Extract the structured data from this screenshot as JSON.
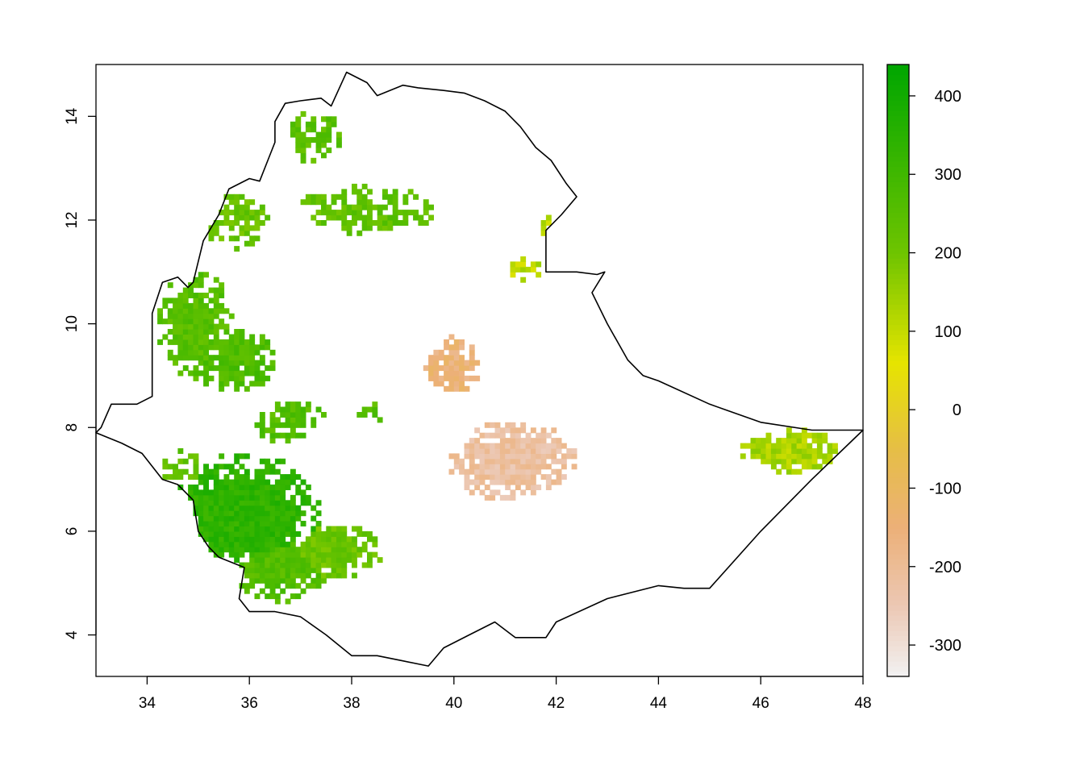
{
  "chart_data": {
    "type": "heatmap",
    "title": "",
    "xlabel": "",
    "ylabel": "",
    "xlim": [
      33,
      48
    ],
    "ylim": [
      3.2,
      15.0
    ],
    "x_ticks": [
      34,
      36,
      38,
      40,
      42,
      44,
      46,
      48
    ],
    "y_ticks": [
      4,
      6,
      8,
      10,
      12,
      14
    ],
    "grid": false,
    "legend": {
      "type": "colorbar",
      "placement": "right",
      "range": [
        -340,
        440
      ],
      "ticks": [
        -300,
        -200,
        -100,
        0,
        100,
        200,
        300,
        400
      ]
    },
    "colors": {
      "low": "#f2f2f2",
      "zero": "#e6c94a",
      "high": "#00a600"
    },
    "boundary": [
      [
        33.0,
        7.9
      ],
      [
        33.1,
        8.0
      ],
      [
        33.3,
        8.45
      ],
      [
        33.8,
        8.45
      ],
      [
        34.1,
        8.6
      ],
      [
        34.1,
        10.2
      ],
      [
        34.3,
        10.8
      ],
      [
        34.6,
        10.9
      ],
      [
        34.8,
        10.7
      ],
      [
        34.9,
        10.8
      ],
      [
        35.1,
        11.6
      ],
      [
        35.4,
        12.1
      ],
      [
        35.6,
        12.6
      ],
      [
        36.0,
        12.8
      ],
      [
        36.2,
        12.75
      ],
      [
        36.5,
        13.5
      ],
      [
        36.5,
        13.9
      ],
      [
        36.7,
        14.25
      ],
      [
        37.0,
        14.3
      ],
      [
        37.4,
        14.35
      ],
      [
        37.6,
        14.2
      ],
      [
        37.9,
        14.85
      ],
      [
        38.3,
        14.65
      ],
      [
        38.5,
        14.4
      ],
      [
        39.0,
        14.6
      ],
      [
        39.3,
        14.55
      ],
      [
        39.8,
        14.5
      ],
      [
        40.2,
        14.45
      ],
      [
        40.6,
        14.3
      ],
      [
        41.0,
        14.1
      ],
      [
        41.3,
        13.8
      ],
      [
        41.6,
        13.4
      ],
      [
        41.9,
        13.15
      ],
      [
        42.2,
        12.7
      ],
      [
        42.4,
        12.45
      ],
      [
        42.1,
        12.1
      ],
      [
        41.8,
        11.8
      ],
      [
        41.8,
        11.0
      ],
      [
        42.4,
        11.0
      ],
      [
        42.8,
        10.95
      ],
      [
        42.95,
        11.0
      ],
      [
        42.7,
        10.6
      ],
      [
        43.0,
        10.0
      ],
      [
        43.4,
        9.3
      ],
      [
        43.7,
        9.0
      ],
      [
        44.0,
        8.9
      ],
      [
        45.0,
        8.45
      ],
      [
        46.0,
        8.1
      ],
      [
        47.0,
        7.95
      ],
      [
        48.0,
        7.95
      ],
      [
        47.0,
        7.0
      ],
      [
        46.0,
        6.0
      ],
      [
        45.0,
        4.9
      ],
      [
        44.5,
        4.9
      ],
      [
        44.0,
        4.95
      ],
      [
        43.0,
        4.7
      ],
      [
        42.0,
        4.25
      ],
      [
        41.8,
        3.95
      ],
      [
        41.2,
        3.95
      ],
      [
        40.8,
        4.25
      ],
      [
        40.3,
        4.0
      ],
      [
        39.8,
        3.75
      ],
      [
        39.5,
        3.4
      ],
      [
        39.0,
        3.5
      ],
      [
        38.5,
        3.6
      ],
      [
        38.0,
        3.6
      ],
      [
        37.5,
        4.0
      ],
      [
        37.0,
        4.35
      ],
      [
        36.5,
        4.45
      ],
      [
        36.0,
        4.45
      ],
      [
        35.8,
        4.7
      ],
      [
        35.9,
        5.3
      ],
      [
        35.4,
        5.5
      ],
      [
        35.2,
        5.7
      ],
      [
        35.0,
        6.0
      ],
      [
        34.9,
        6.6
      ],
      [
        34.6,
        6.9
      ],
      [
        34.3,
        7.0
      ],
      [
        33.9,
        7.5
      ],
      [
        33.5,
        7.7
      ],
      [
        33.0,
        7.9
      ]
    ],
    "cell_size_deg": 0.1,
    "patches": [
      {
        "x": 35.85,
        "y": 6.3,
        "sx": 1.4,
        "sy": 1.05,
        "value": 340,
        "density": 0.95
      },
      {
        "x": 36.6,
        "y": 5.3,
        "sx": 0.9,
        "sy": 0.6,
        "value": 260,
        "density": 0.85
      },
      {
        "x": 37.6,
        "y": 5.6,
        "sx": 0.9,
        "sy": 0.5,
        "value": 210,
        "density": 0.85
      },
      {
        "x": 34.95,
        "y": 10.0,
        "sx": 0.7,
        "sy": 1.0,
        "value": 250,
        "density": 0.8
      },
      {
        "x": 35.7,
        "y": 9.3,
        "sx": 0.8,
        "sy": 0.6,
        "value": 270,
        "density": 0.75
      },
      {
        "x": 35.7,
        "y": 12.0,
        "sx": 0.7,
        "sy": 0.6,
        "value": 220,
        "density": 0.6
      },
      {
        "x": 37.3,
        "y": 13.6,
        "sx": 0.8,
        "sy": 0.8,
        "value": 240,
        "density": 0.4
      },
      {
        "x": 38.3,
        "y": 12.2,
        "sx": 1.5,
        "sy": 0.5,
        "value": 230,
        "density": 0.6
      },
      {
        "x": 36.8,
        "y": 8.1,
        "sx": 0.7,
        "sy": 0.4,
        "value": 260,
        "density": 0.7
      },
      {
        "x": 34.7,
        "y": 7.2,
        "sx": 0.5,
        "sy": 0.4,
        "value": 230,
        "density": 0.6
      },
      {
        "x": 38.4,
        "y": 8.3,
        "sx": 0.3,
        "sy": 0.2,
        "value": 250,
        "density": 0.6
      },
      {
        "x": 40.0,
        "y": 9.2,
        "sx": 0.5,
        "sy": 0.5,
        "value": -150,
        "density": 0.9
      },
      {
        "x": 41.15,
        "y": 7.35,
        "sx": 1.1,
        "sy": 0.7,
        "value": -220,
        "density": 0.9
      },
      {
        "x": 46.6,
        "y": 7.55,
        "sx": 0.9,
        "sy": 0.4,
        "value": 130,
        "density": 0.85
      },
      {
        "x": 41.4,
        "y": 11.05,
        "sx": 0.35,
        "sy": 0.25,
        "value": 110,
        "density": 0.55
      },
      {
        "x": 41.8,
        "y": 11.95,
        "sx": 0.25,
        "sy": 0.25,
        "value": 100,
        "density": 0.5
      }
    ]
  }
}
